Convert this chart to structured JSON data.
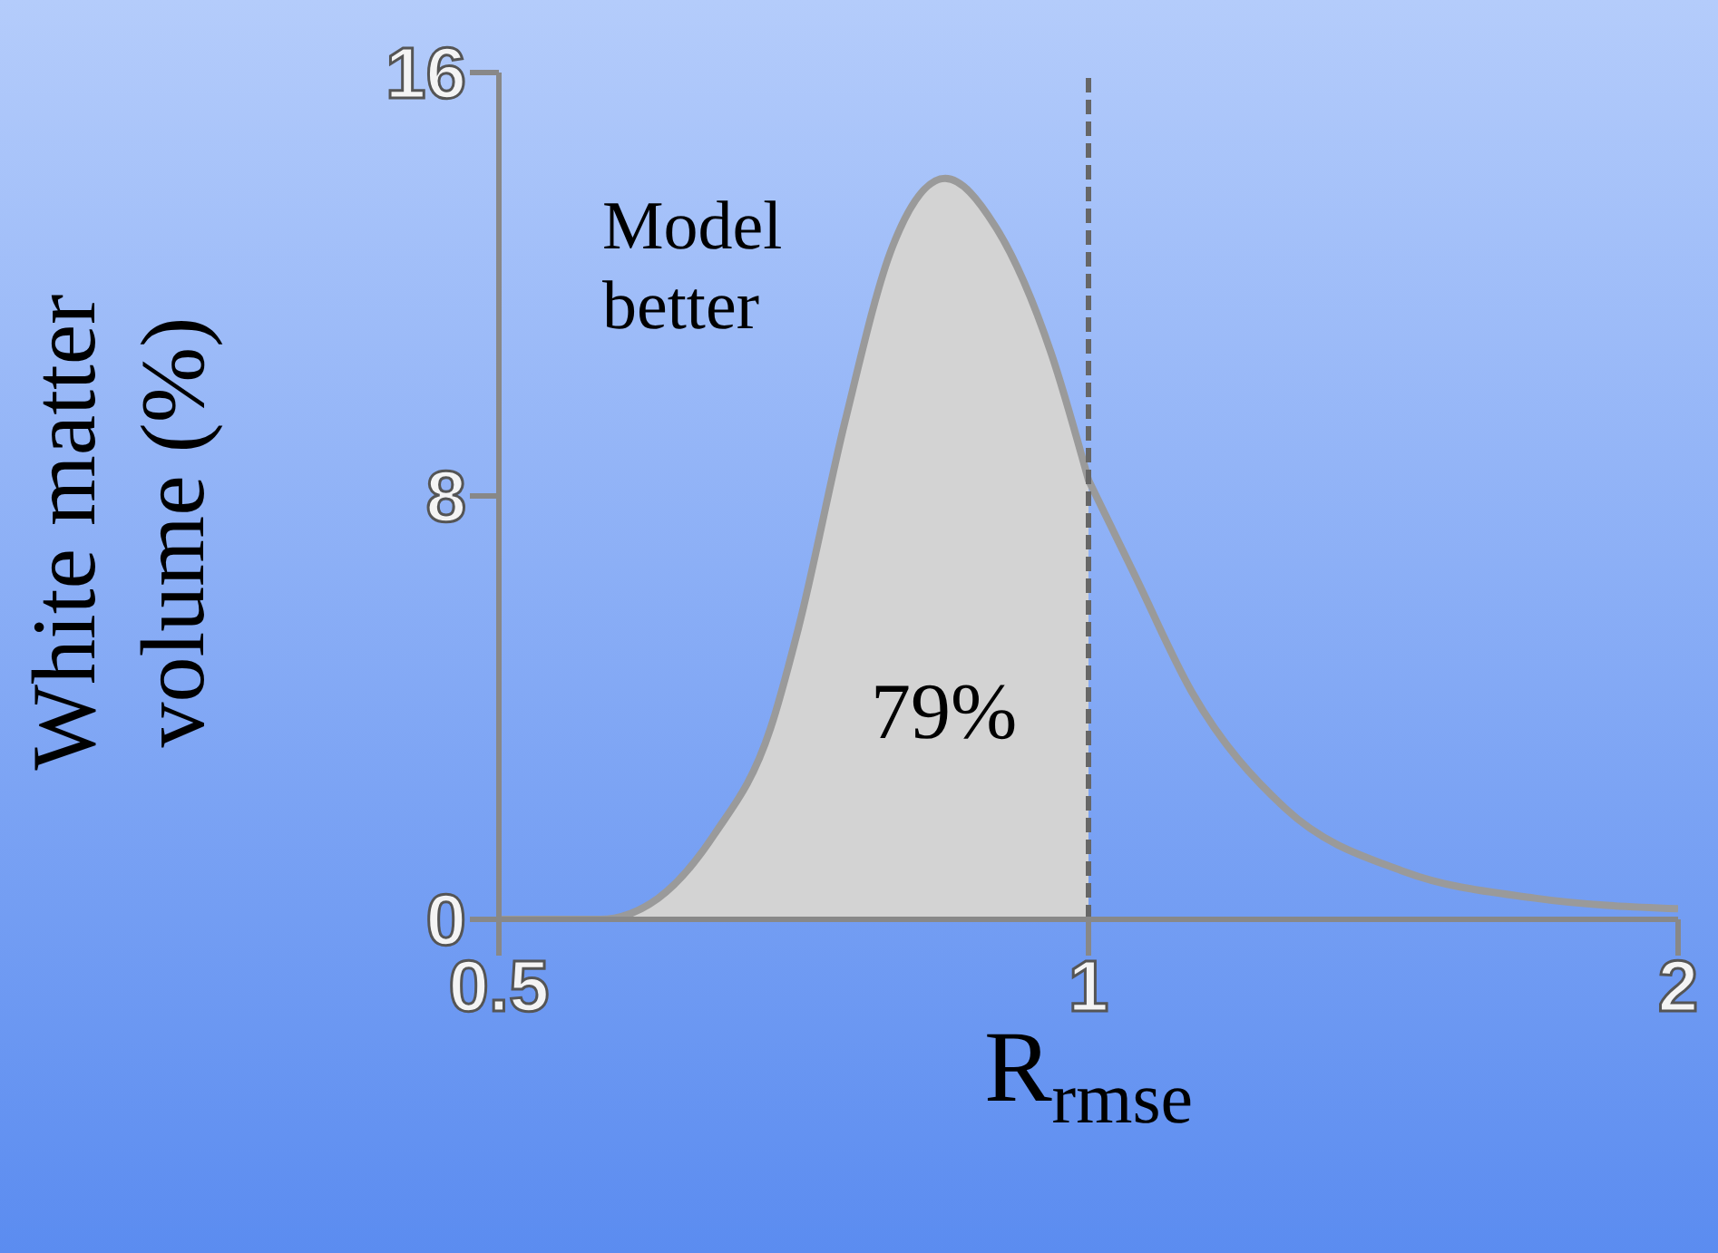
{
  "chart_data": {
    "type": "area",
    "xlabel": "R$_{rmse}$",
    "ylabel": "White matter volume (%)",
    "log": "x",
    "xlim": [
      0.5,
      2
    ],
    "xticks": [
      0.5,
      1,
      2
    ],
    "ylim": [
      0,
      16
    ],
    "yticks": [
      0,
      8,
      16
    ],
    "marker": "none",
    "series": [
      {
        "color": "#9a9a9a",
        "x": [
          0.5,
          0.563,
          0.603,
          0.644,
          0.688,
          0.711,
          0.751,
          0.794,
          0.845,
          0.896,
          0.957,
          1
        ],
        "values": [
          0,
          0,
          0.4,
          1.6,
          3.6,
          5.5,
          9.4,
          12.7,
          14.0,
          13.1,
          10.7,
          8.3
        ]
      },
      {
        "type": "line",
        "color": "#9a9a9a",
        "x": [
          1,
          1.056,
          1.129,
          1.26,
          1.45,
          1.69,
          2
        ],
        "values": [
          8.3,
          6.5,
          4.3,
          2.1,
          0.9,
          0.4,
          0.2
        ]
      }
    ],
    "ref_lines": [
      {
        "axis": "x",
        "value": 1,
        "color": "#666666",
        "line_style": "dashed"
      }
    ],
    "annotations": [
      "Model better",
      "79%"
    ]
  }
}
